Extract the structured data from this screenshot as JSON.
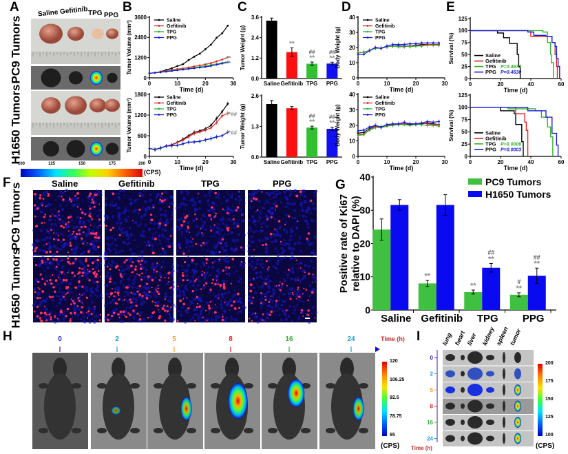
{
  "panels": {
    "A": "A",
    "B": "B",
    "C": "C",
    "D": "D",
    "E": "E",
    "F": "F",
    "G": "G",
    "H": "H",
    "I": "I"
  },
  "panel_a": {
    "groups": [
      "Saline",
      "Gefitinib",
      "TPG",
      "PPG"
    ],
    "rows": [
      "PC9 Tumors",
      "H1650 Tumors"
    ],
    "colorbar": {
      "ticks": [
        "100",
        "125",
        "150",
        "175",
        "200"
      ],
      "unit": "(CPS)"
    }
  },
  "panel_f": {
    "columns": [
      "Saline",
      "Gefitinib",
      "TPG",
      "PPG"
    ],
    "rows": [
      "PC9 Tumors",
      "H1650 Tumors"
    ],
    "stain_colors": {
      "nuclei": "#1a1ad0",
      "ki67": "#ff3060"
    }
  },
  "panel_h": {
    "timepoints": [
      "0",
      "2",
      "5",
      "8",
      "16",
      "24"
    ],
    "timepoint_colors": [
      "#2020c0",
      "#1aa0d0",
      "#f0a030",
      "#e02020",
      "#30b030",
      "#20a0d0"
    ],
    "time_label": "Time (h)",
    "colorbar": {
      "ticks": [
        "120",
        "106.25",
        "92.5",
        "78.75",
        "65"
      ],
      "unit": "(CPS)"
    }
  },
  "panel_i": {
    "organs": [
      "lung",
      "heart",
      "liver",
      "kidney",
      "spleen",
      "tumor"
    ],
    "timepoints": [
      "0",
      "2",
      "5",
      "8",
      "16",
      "24"
    ],
    "time_label": "Time (h)",
    "colorbar": {
      "ticks": [
        "200",
        "175",
        "150",
        "125",
        "100"
      ],
      "unit": "(CPS)"
    }
  },
  "chart_data": [
    {
      "id": "B_pc9",
      "type": "line",
      "xlabel": "Time (d)",
      "ylabel": "Tumor Volume (mm³)",
      "xlim": [
        0,
        30
      ],
      "xticks": [
        0,
        10,
        20,
        30
      ],
      "ylim": [
        0,
        3600
      ],
      "yticks": [
        0,
        1200,
        2400,
        3600
      ],
      "x": [
        0,
        2,
        4,
        6,
        8,
        10,
        12,
        14,
        16,
        18,
        20,
        22,
        24,
        26,
        28
      ],
      "series": [
        {
          "name": "Saline",
          "color": "#000000",
          "values": [
            270,
            300,
            370,
            475,
            570,
            700,
            815,
            1050,
            1260,
            1430,
            1700,
            1970,
            2380,
            2650,
            3100
          ]
        },
        {
          "name": "Gefitinib",
          "color": "#e02020",
          "values": [
            270,
            310,
            360,
            420,
            470,
            520,
            560,
            620,
            680,
            740,
            800,
            880,
            980,
            1090,
            1220
          ]
        },
        {
          "name": "TPG",
          "color": "#30b030",
          "values": [
            270,
            300,
            340,
            390,
            430,
            470,
            510,
            560,
            610,
            660,
            710,
            770,
            830,
            890,
            950
          ]
        },
        {
          "name": "PPG",
          "color": "#1a1ae0",
          "values": [
            270,
            300,
            330,
            370,
            410,
            450,
            490,
            530,
            570,
            610,
            650,
            710,
            780,
            850,
            920
          ]
        }
      ],
      "annotations": [
        {
          "text": "**",
          "at_series": "Gefitinib"
        },
        {
          "text": "**",
          "at_series": "PPG"
        }
      ],
      "legend": "top-left"
    },
    {
      "id": "B_h1650",
      "type": "line",
      "xlabel": "Time (d)",
      "ylabel": "Tumor Volume (mm³)",
      "xlim": [
        0,
        30
      ],
      "xticks": [
        0,
        10,
        20,
        30
      ],
      "ylim": [
        0,
        1800
      ],
      "yticks": [
        0,
        600,
        1200,
        1800
      ],
      "x": [
        0,
        2,
        4,
        6,
        8,
        10,
        12,
        14,
        16,
        18,
        20,
        22,
        24,
        26,
        28
      ],
      "series": [
        {
          "name": "Saline",
          "color": "#000000",
          "values": [
            230,
            200,
            240,
            300,
            340,
            410,
            500,
            600,
            700,
            740,
            800,
            900,
            1100,
            1300,
            1530
          ]
        },
        {
          "name": "Gefitinib",
          "color": "#e02020",
          "values": [
            230,
            210,
            240,
            300,
            330,
            400,
            470,
            570,
            660,
            710,
            760,
            830,
            980,
            1180,
            1250
          ]
        },
        {
          "name": "TPG",
          "color": "#30b030",
          "values": [
            230,
            210,
            230,
            300,
            310,
            320,
            360,
            410,
            420,
            430,
            480,
            510,
            560,
            600,
            700
          ]
        },
        {
          "name": "PPG",
          "color": "#1a1ae0",
          "values": [
            230,
            190,
            250,
            300,
            310,
            320,
            370,
            410,
            420,
            440,
            480,
            520,
            570,
            600,
            710
          ]
        }
      ],
      "annotations": [
        {
          "text": "**##",
          "at_series": "Gefitinib"
        },
        {
          "text": "**##",
          "at_series": "PPG"
        }
      ],
      "legend": "top-left"
    },
    {
      "id": "C_pc9",
      "type": "bar",
      "ylabel": "Tumor Weight (g)",
      "ylim": [
        0,
        3.6
      ],
      "yticks": [
        "0.0",
        "1.2",
        "2.4",
        "3.6"
      ],
      "categories": [
        "Saline",
        "Gefitinib",
        "TPG",
        "PPG"
      ],
      "values": [
        3.4,
        1.55,
        0.87,
        0.88
      ],
      "errors": [
        0.15,
        0.25,
        0.1,
        0.08
      ],
      "colors": [
        "#000000",
        "#ff1010",
        "#30c030",
        "#1010f0"
      ],
      "stars": [
        "",
        "**",
        "**",
        "**"
      ],
      "hashes": [
        "",
        "",
        "##",
        "##"
      ]
    },
    {
      "id": "C_h1650",
      "type": "bar",
      "ylabel": "Tumor Weight (g)",
      "ylim": [
        0,
        2.6
      ],
      "yticks": [
        "0.0",
        "1.3",
        "2.6"
      ],
      "categories": [
        "Saline",
        "Gefitinib",
        "TPG",
        "PPG"
      ],
      "values": [
        2.25,
        2.07,
        1.25,
        1.2
      ],
      "errors": [
        0.15,
        0.07,
        0.06,
        0.07
      ],
      "colors": [
        "#000000",
        "#ff1010",
        "#30c030",
        "#1010f0"
      ],
      "stars": [
        "",
        "",
        "**",
        "**"
      ],
      "hashes": [
        "",
        "",
        "##",
        "##"
      ]
    },
    {
      "id": "D_pc9",
      "type": "line",
      "xlabel": "Time (d)",
      "ylabel": "Body Weight (g)",
      "xlim": [
        0,
        30
      ],
      "xticks": [
        0,
        10,
        20,
        30
      ],
      "ylim": [
        0,
        40
      ],
      "yticks": [
        0,
        10,
        20,
        30,
        40
      ],
      "x": [
        0,
        2,
        4,
        6,
        8,
        10,
        12,
        14,
        16,
        18,
        20,
        22,
        24,
        26,
        28
      ],
      "series": [
        {
          "name": "Saline",
          "color": "#000000",
          "values": [
            16.5,
            17,
            18,
            20,
            19.5,
            20.5,
            21,
            21,
            21,
            21,
            21.5,
            22,
            22,
            22,
            22
          ]
        },
        {
          "name": "Gefitinib",
          "color": "#e02020",
          "values": [
            16.5,
            17,
            18,
            20,
            19.5,
            20.5,
            21,
            20.5,
            20.5,
            21,
            21,
            21.5,
            22,
            22,
            22
          ]
        },
        {
          "name": "TPG",
          "color": "#30b030",
          "values": [
            16.5,
            17,
            18,
            19.5,
            19.5,
            20.5,
            21,
            20.5,
            21,
            20.5,
            21,
            21,
            21.5,
            21.5,
            21.5
          ]
        },
        {
          "name": "PPG",
          "color": "#1a1ae0",
          "values": [
            15.5,
            15.5,
            18,
            20,
            19.5,
            21,
            22,
            22,
            22,
            22.5,
            22.5,
            23,
            23,
            23,
            23
          ]
        }
      ],
      "legend": "top-left"
    },
    {
      "id": "D_h1650",
      "type": "line",
      "xlabel": "Time (d)",
      "ylabel": "Body Weight (g)",
      "xlim": [
        0,
        30
      ],
      "xticks": [
        0,
        10,
        20,
        30
      ],
      "ylim": [
        0,
        40
      ],
      "yticks": [
        0,
        10,
        20,
        30,
        40
      ],
      "x": [
        0,
        2,
        4,
        6,
        8,
        10,
        12,
        14,
        16,
        18,
        20,
        22,
        24,
        26,
        28
      ],
      "series": [
        {
          "name": "Saline",
          "color": "#000000",
          "values": [
            15,
            15.5,
            18,
            19.5,
            19,
            20,
            20.5,
            20.5,
            21,
            20.5,
            21,
            21,
            21.5,
            21,
            20.5
          ]
        },
        {
          "name": "Gefitinib",
          "color": "#e02020",
          "values": [
            14,
            14.5,
            17,
            19.5,
            19,
            20,
            20.5,
            21,
            21,
            21,
            21,
            21.5,
            21,
            20.5,
            20.5
          ]
        },
        {
          "name": "TPG",
          "color": "#30b030",
          "values": [
            13.5,
            14,
            17,
            18.5,
            18.5,
            19.5,
            20,
            20.5,
            20.5,
            20,
            20.5,
            20.5,
            20,
            20,
            19.5
          ]
        },
        {
          "name": "PPG",
          "color": "#1a1ae0",
          "values": [
            16.5,
            17,
            19,
            20,
            19,
            20.5,
            21,
            21,
            22,
            21,
            21,
            21.5,
            22.5,
            22,
            22.5
          ]
        }
      ],
      "legend": "top-left"
    },
    {
      "id": "E_pc9",
      "type": "step",
      "xlabel": "Time (d)",
      "ylabel": "Survival (%)",
      "xlim": [
        0,
        60
      ],
      "xticks": [
        0,
        20,
        40,
        60
      ],
      "ylim": [
        0,
        125
      ],
      "yticks": [
        0,
        25,
        50,
        75,
        100,
        125
      ],
      "series": [
        {
          "name": "Saline",
          "color": "#000000",
          "p": "",
          "points": [
            [
              0,
              100
            ],
            [
              18,
              95
            ],
            [
              22,
              85
            ],
            [
              26,
              73
            ],
            [
              31,
              50
            ],
            [
              32,
              25
            ],
            [
              33,
              0
            ]
          ]
        },
        {
          "name": "Gefitinib",
          "color": "#e02020",
          "p": "",
          "points": [
            [
              0,
              100
            ],
            [
              40,
              88
            ],
            [
              50,
              88
            ],
            [
              54,
              75
            ],
            [
              56,
              50
            ],
            [
              57,
              25
            ],
            [
              57.5,
              0
            ]
          ]
        },
        {
          "name": "TPG",
          "color": "#30b030",
          "p": "P=0.4672",
          "points": [
            [
              0,
              100
            ],
            [
              48,
              97
            ],
            [
              51,
              75
            ],
            [
              53,
              50
            ],
            [
              53.5,
              33
            ],
            [
              55,
              0
            ]
          ]
        },
        {
          "name": "PPG",
          "color": "#1a1ae0",
          "p": "P=0.4630",
          "points": [
            [
              0,
              100
            ],
            [
              38,
              97
            ],
            [
              42,
              90
            ],
            [
              50,
              88
            ],
            [
              54,
              75
            ],
            [
              56,
              67
            ],
            [
              57,
              42
            ],
            [
              58,
              25
            ],
            [
              59,
              0
            ]
          ]
        }
      ],
      "legend": "bottom-left"
    },
    {
      "id": "E_h1650",
      "type": "step",
      "xlabel": "Time (d)",
      "ylabel": "Survival (%)",
      "xlim": [
        0,
        60
      ],
      "xticks": [
        0,
        20,
        40,
        60
      ],
      "ylim": [
        0,
        125
      ],
      "yticks": [
        0,
        25,
        50,
        75,
        100,
        125
      ],
      "series": [
        {
          "name": "Saline",
          "color": "#000000",
          "p": "",
          "points": [
            [
              0,
              100
            ],
            [
              20,
              93
            ],
            [
              29,
              87
            ],
            [
              30,
              65
            ],
            [
              34,
              30
            ],
            [
              35,
              0
            ]
          ]
        },
        {
          "name": "Gefitinib",
          "color": "#e02020",
          "p": "",
          "points": [
            [
              0,
              100
            ],
            [
              30,
              87
            ],
            [
              36,
              70
            ],
            [
              37,
              53
            ],
            [
              38,
              0
            ]
          ]
        },
        {
          "name": "TPG",
          "color": "#30b030",
          "p": "P=0.0006",
          "points": [
            [
              0,
              100
            ],
            [
              25,
              97
            ],
            [
              43,
              93
            ],
            [
              47,
              80
            ],
            [
              51,
              60
            ],
            [
              53,
              40
            ],
            [
              54.5,
              0
            ]
          ]
        },
        {
          "name": "PPG",
          "color": "#1a1ae0",
          "p": "P=0.0003",
          "points": [
            [
              0,
              100
            ],
            [
              35,
              100
            ],
            [
              38,
              93
            ],
            [
              50,
              80
            ],
            [
              54,
              47
            ],
            [
              57,
              23
            ],
            [
              58,
              0
            ]
          ]
        }
      ],
      "legend": "bottom-left"
    },
    {
      "id": "G",
      "type": "bar",
      "ylabel": "Positive rate of Ki67 relative to DAPI (%)",
      "ylabel_lines": [
        "Positive rate of Ki67",
        "relative to DAPI (%)"
      ],
      "ylim": [
        0,
        40
      ],
      "yticks": [
        "0",
        "10",
        "20",
        "30",
        "40"
      ],
      "categories": [
        "Saline",
        "Gefitinib",
        "TPG",
        "PPG"
      ],
      "series": [
        {
          "name": "PC9 Tumors",
          "color": "#40c040",
          "values": [
            24.2,
            8.0,
            5.4,
            4.6
          ],
          "errors": [
            3.2,
            0.9,
            0.6,
            0.6
          ],
          "stars": [
            "",
            "**",
            "**",
            "**"
          ],
          "hashes": [
            "",
            "",
            "",
            "#"
          ]
        },
        {
          "name": "H1650 Tumors",
          "color": "#0a0af0",
          "values": [
            31.6,
            31.6,
            12.7,
            10.3
          ],
          "errors": [
            1.6,
            3.1,
            1.3,
            2.3
          ],
          "stars": [
            "",
            "",
            "**",
            "**"
          ],
          "hashes": [
            "",
            "",
            "##",
            "##"
          ]
        }
      ],
      "legend": "top-right"
    }
  ]
}
